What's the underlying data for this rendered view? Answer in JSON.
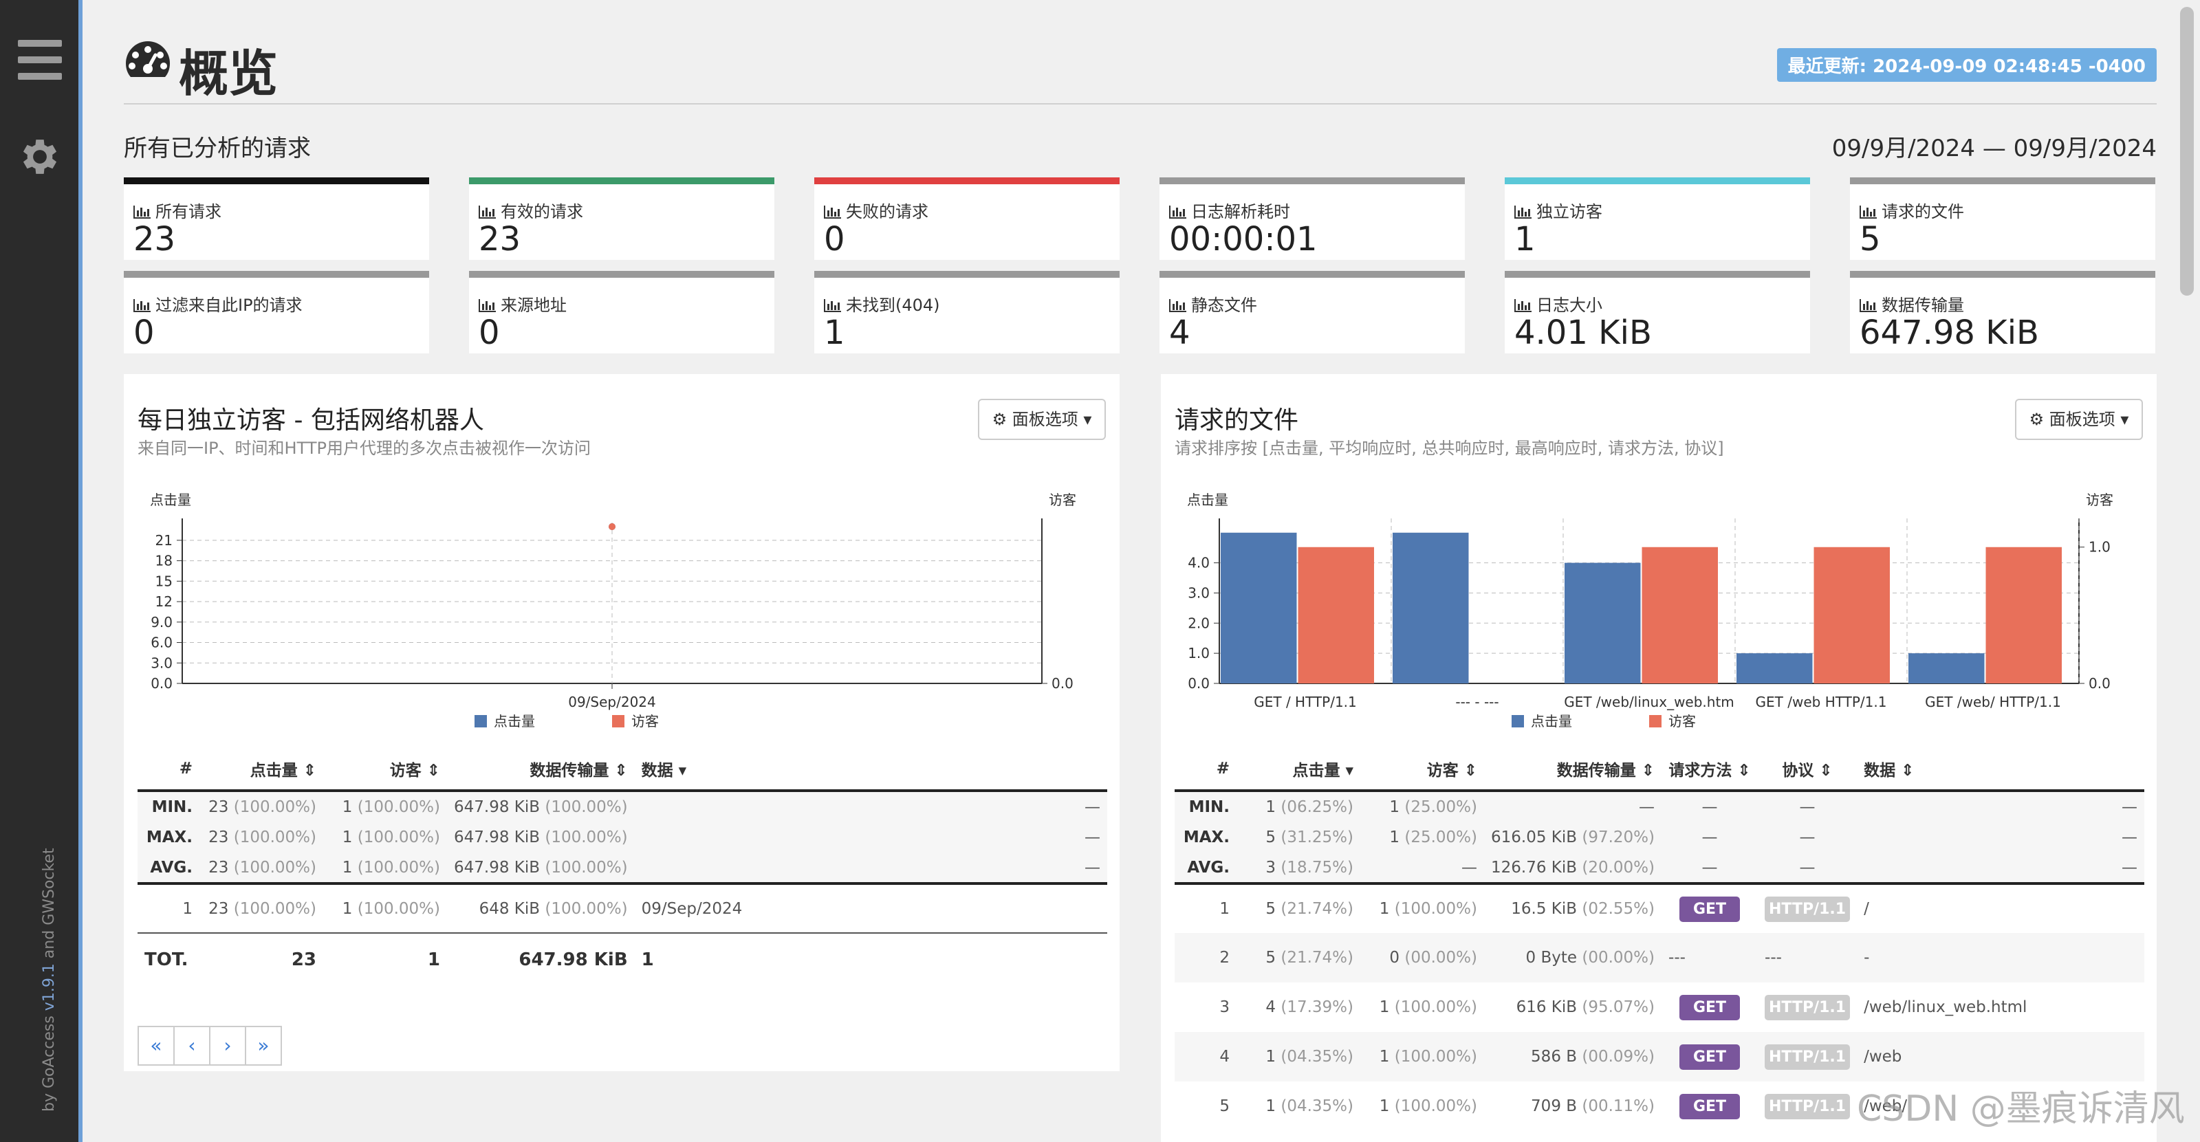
{
  "sidebar": {
    "menu_icon": "hamburger-icon",
    "settings_icon": "gear-icon",
    "credits": {
      "by": "by ",
      "app": "GoAccess ",
      "version": "v1.9.1",
      "and": " and ",
      "ws": "GWSocket"
    }
  },
  "header": {
    "title": "概览",
    "title_icon": "dashboard-icon",
    "last_updated": "最近更新: 2024-09-09 02:48:45 -0400"
  },
  "overview": {
    "section_title": "所有已分析的请求",
    "date_range": "09/9月/2024 — 09/9月/2024",
    "cards": [
      {
        "label": "所有请求",
        "value": "23",
        "color": "#111111"
      },
      {
        "label": "有效的请求",
        "value": "23",
        "color": "#3c9a6a"
      },
      {
        "label": "失败的请求",
        "value": "0",
        "color": "#e04040"
      },
      {
        "label": "日志解析耗时",
        "value": "00:00:01",
        "color": "#999999"
      },
      {
        "label": "独立访客",
        "value": "1",
        "color": "#5bc8d8"
      },
      {
        "label": "请求的文件",
        "value": "5",
        "color": "#999999"
      },
      {
        "label": "过滤来自此IP的请求",
        "value": "0",
        "color": "#999999"
      },
      {
        "label": "来源地址",
        "value": "0",
        "color": "#999999"
      },
      {
        "label": "未找到(404)",
        "value": "1",
        "color": "#999999"
      },
      {
        "label": "静态文件",
        "value": "4",
        "color": "#999999"
      },
      {
        "label": "日志大小",
        "value": "4.01 KiB",
        "color": "#999999"
      },
      {
        "label": "数据传输量",
        "value": "647.98 KiB",
        "color": "#999999"
      }
    ]
  },
  "visitors_panel": {
    "title": "每日独立访客 - 包括网络机器人",
    "subtitle": "来自同一IP、时间和HTTP用户代理的多次点击被视作一次访问",
    "options_label": "面板选项",
    "table": {
      "headers": [
        "#",
        "点击量",
        "访客",
        "数据传输量",
        "数据"
      ],
      "metrics": [
        {
          "label": "MIN.",
          "hits": "23",
          "hits_pct": "(100.00%)",
          "visitors": "1",
          "visitors_pct": "(100.00%)",
          "bw": "647.98 KiB",
          "bw_pct": "(100.00%)",
          "data": "—"
        },
        {
          "label": "MAX.",
          "hits": "23",
          "hits_pct": "(100.00%)",
          "visitors": "1",
          "visitors_pct": "(100.00%)",
          "bw": "647.98 KiB",
          "bw_pct": "(100.00%)",
          "data": "—"
        },
        {
          "label": "AVG.",
          "hits": "23",
          "hits_pct": "(100.00%)",
          "visitors": "1",
          "visitors_pct": "(100.00%)",
          "bw": "647.98 KiB",
          "bw_pct": "(100.00%)",
          "data": "—"
        }
      ],
      "rows": [
        {
          "num": "1",
          "hits": "23",
          "hits_pct": "(100.00%)",
          "visitors": "1",
          "visitors_pct": "(100.00%)",
          "bw": "648 KiB",
          "bw_pct": "(100.00%)",
          "data": "09/Sep/2024"
        }
      ],
      "total": {
        "label": "TOT.",
        "hits": "23",
        "visitors": "1",
        "bw": "647.98 KiB",
        "data": "1"
      }
    },
    "pager": [
      "«",
      "‹",
      "›",
      "»"
    ]
  },
  "files_panel": {
    "title": "请求的文件",
    "subtitle": "请求排序按 [点击量, 平均响应时, 总共响应时, 最高响应时, 请求方法, 协议]",
    "options_label": "面板选项",
    "table": {
      "headers": [
        "#",
        "点击量",
        "访客",
        "数据传输量",
        "请求方法",
        "协议",
        "数据"
      ],
      "metrics": [
        {
          "label": "MIN.",
          "hits": "1",
          "hits_pct": "(06.25%)",
          "visitors": "1",
          "visitors_pct": "(25.00%)",
          "bw": "—",
          "bw_pct": "",
          "method": "—",
          "proto": "—",
          "data": "—"
        },
        {
          "label": "MAX.",
          "hits": "5",
          "hits_pct": "(31.25%)",
          "visitors": "1",
          "visitors_pct": "(25.00%)",
          "bw": "616.05 KiB",
          "bw_pct": "(97.20%)",
          "method": "—",
          "proto": "—",
          "data": "—"
        },
        {
          "label": "AVG.",
          "hits": "3",
          "hits_pct": "(18.75%)",
          "visitors": "—",
          "visitors_pct": "",
          "bw": "126.76 KiB",
          "bw_pct": "(20.00%)",
          "method": "—",
          "proto": "—",
          "data": "—"
        }
      ],
      "rows": [
        {
          "num": "1",
          "hits": "5",
          "hits_pct": "(21.74%)",
          "visitors": "1",
          "visitors_pct": "(100.00%)",
          "bw": "16.5 KiB",
          "bw_pct": "(02.55%)",
          "method": "GET",
          "proto": "HTTP/1.1",
          "data": "/"
        },
        {
          "num": "2",
          "hits": "5",
          "hits_pct": "(21.74%)",
          "visitors": "0",
          "visitors_pct": "(00.00%)",
          "bw": "0 Byte",
          "bw_pct": "(00.00%)",
          "method": "---",
          "proto": "---",
          "data": "-"
        },
        {
          "num": "3",
          "hits": "4",
          "hits_pct": "(17.39%)",
          "visitors": "1",
          "visitors_pct": "(100.00%)",
          "bw": "616 KiB",
          "bw_pct": "(95.07%)",
          "method": "GET",
          "proto": "HTTP/1.1",
          "data": "/web/linux_web.html"
        },
        {
          "num": "4",
          "hits": "1",
          "hits_pct": "(04.35%)",
          "visitors": "1",
          "visitors_pct": "(100.00%)",
          "bw": "586 B",
          "bw_pct": "(00.09%)",
          "method": "GET",
          "proto": "HTTP/1.1",
          "data": "/web"
        },
        {
          "num": "5",
          "hits": "1",
          "hits_pct": "(04.35%)",
          "visitors": "1",
          "visitors_pct": "(100.00%)",
          "bw": "709 B",
          "bw_pct": "(00.11%)",
          "method": "GET",
          "proto": "HTTP/1.1",
          "data": "/web/"
        }
      ]
    }
  },
  "chart_data": [
    {
      "type": "line",
      "ylabel_left": "点击量",
      "ylabel_right": "访客",
      "categories": [
        "09/Sep/2024"
      ],
      "left_ticks": [
        "0.0",
        "3.0",
        "6.0",
        "9.0",
        "12",
        "15",
        "18",
        "21"
      ],
      "right_ticks": [
        "0.0"
      ],
      "ylim_left": [
        0,
        23
      ],
      "series": [
        {
          "name": "点击量",
          "values": [
            23
          ],
          "color": "#4f78b0"
        },
        {
          "name": "访客",
          "values": [
            1
          ],
          "color": "#e8705a"
        }
      ],
      "grid": true,
      "legend": "bottom"
    },
    {
      "type": "bar",
      "ylabel_left": "点击量",
      "ylabel_right": "访客",
      "categories": [
        "GET / HTTP/1.1",
        "--- - ---",
        "GET /web/linux_web.htm",
        "GET /web HTTP/1.1",
        "GET /web/ HTTP/1.1"
      ],
      "left_ticks": [
        "0.0",
        "1.0",
        "2.0",
        "3.0",
        "4.0"
      ],
      "right_ticks": [
        "0.0",
        "1.0"
      ],
      "ylim_left": [
        0,
        5.2
      ],
      "ylim_right": [
        0,
        1.15
      ],
      "series": [
        {
          "name": "点击量",
          "values": [
            5,
            5,
            4,
            1,
            1
          ],
          "color": "#4f78b0"
        },
        {
          "name": "访客",
          "values": [
            1,
            0,
            1,
            1,
            1
          ],
          "color": "#e8705a"
        }
      ],
      "grid": true,
      "legend": "bottom"
    }
  ],
  "watermark": "CSDN @墨痕诉清风"
}
